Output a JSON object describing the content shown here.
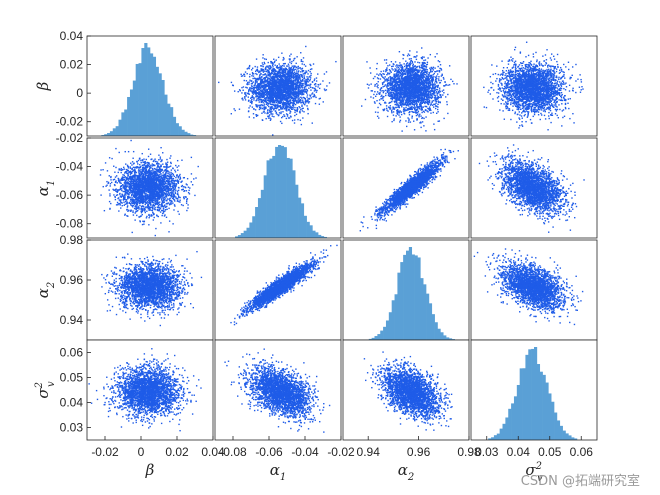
{
  "chart_data": {
    "type": "scatter-matrix",
    "variables": [
      {
        "key": "beta",
        "label_base": "β",
        "label_sub": "",
        "label_sup": "",
        "range": [
          -0.03,
          0.04
        ],
        "ticks": [
          -0.02,
          0,
          0.02,
          0.04
        ],
        "tick_labels": [
          "-0.02",
          "0",
          "0.02",
          "0.04"
        ],
        "mean": 0.004,
        "sd": 0.0085
      },
      {
        "key": "alpha1",
        "label_base": "α",
        "label_sub": "1",
        "label_sup": "",
        "range": [
          -0.09,
          -0.02
        ],
        "ticks": [
          -0.08,
          -0.06,
          -0.04,
          -0.02
        ],
        "tick_labels": [
          "-0.08",
          "-0.06",
          "-0.04",
          "-0.02"
        ],
        "mean": -0.054,
        "sd": 0.0085
      },
      {
        "key": "alpha2",
        "label_base": "α",
        "label_sub": "2",
        "label_sup": "",
        "range": [
          0.93,
          0.98
        ],
        "ticks": [
          0.94,
          0.96,
          0.98
        ],
        "tick_labels": [
          "0.94",
          "0.96",
          "0.98"
        ],
        "mean": 0.957,
        "sd": 0.0055
      },
      {
        "key": "sigma2v",
        "label_base": "σ",
        "label_sub": "v",
        "label_sup": "2",
        "range": [
          0.025,
          0.065
        ],
        "ticks": [
          0.03,
          0.04,
          0.05,
          0.06
        ],
        "tick_labels": [
          "0.03",
          "0.04",
          "0.05",
          "0.06"
        ],
        "mean": 0.0445,
        "sd": 0.0048
      }
    ],
    "correlations": [
      [
        1,
        0,
        0,
        0
      ],
      [
        0,
        1,
        0.93,
        -0.45
      ],
      [
        0,
        0.93,
        1,
        -0.45
      ],
      [
        0,
        -0.45,
        -0.45,
        1
      ]
    ],
    "diagonal": "histogram",
    "grid": false,
    "colors": {
      "scatter": "#1f5ce8",
      "hist": "#5aa0d6",
      "frame": "#262626"
    }
  },
  "watermark": "CSDN @拓端研究室"
}
